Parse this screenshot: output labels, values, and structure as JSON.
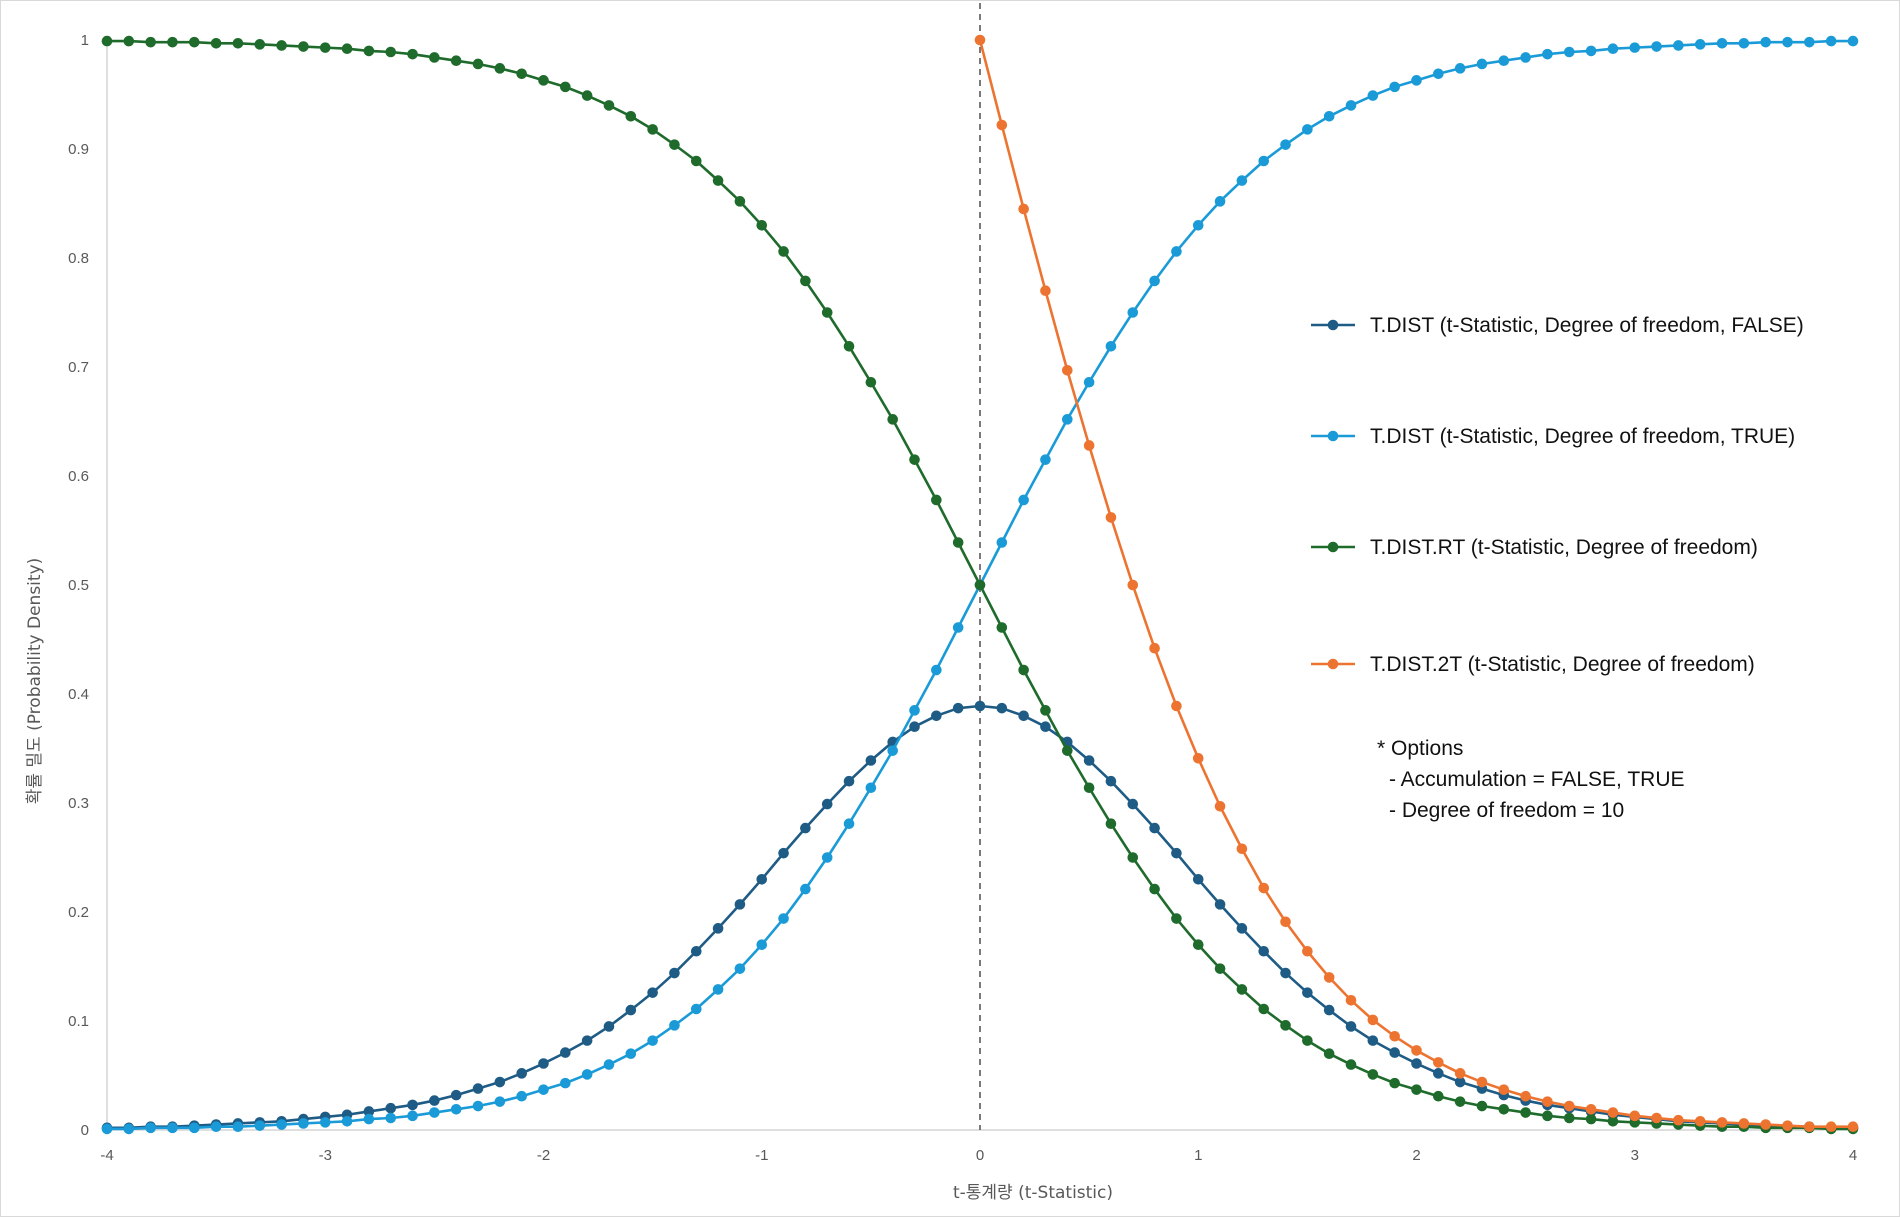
{
  "chart_data": {
    "type": "line",
    "xlabel": "t-통계량 (t-Statistic)",
    "ylabel": "확률 밀도 (Probability Density)",
    "xlim": [
      -4,
      4
    ],
    "ylim": [
      0,
      1
    ],
    "x_ticks": [
      "-4",
      "-3",
      "-2",
      "-1",
      "0",
      "1",
      "2",
      "3",
      "4"
    ],
    "y_ticks": [
      "0",
      "0.1",
      "0.2",
      "0.3",
      "0.4",
      "0.5",
      "0.6",
      "0.7",
      "0.8",
      "0.9",
      "1"
    ],
    "x_step": 0.1,
    "reference_line": {
      "x": 0,
      "style": "dashed",
      "color": "#595959"
    },
    "grid": false,
    "legend_position": "right",
    "series": [
      {
        "name": "T.DIST (t-Statistic, Degree of freedom, FALSE)",
        "color": "#1F5C85",
        "x_start": -4,
        "values": [
          0.002,
          0.002,
          0.003,
          0.003,
          0.004,
          0.005,
          0.006,
          0.007,
          0.008,
          0.01,
          0.012,
          0.014,
          0.017,
          0.02,
          0.023,
          0.027,
          0.032,
          0.038,
          0.044,
          0.052,
          0.061,
          0.071,
          0.082,
          0.095,
          0.11,
          0.126,
          0.144,
          0.164,
          0.185,
          0.207,
          0.23,
          0.254,
          0.277,
          0.299,
          0.32,
          0.339,
          0.356,
          0.37,
          0.38,
          0.387,
          0.389,
          0.387,
          0.38,
          0.37,
          0.356,
          0.339,
          0.32,
          0.299,
          0.277,
          0.254,
          0.23,
          0.207,
          0.185,
          0.164,
          0.144,
          0.126,
          0.11,
          0.095,
          0.082,
          0.071,
          0.061,
          0.052,
          0.044,
          0.038,
          0.032,
          0.027,
          0.023,
          0.02,
          0.017,
          0.014,
          0.012,
          0.01,
          0.008,
          0.007,
          0.006,
          0.005,
          0.004,
          0.003,
          0.003,
          0.002,
          0.002
        ]
      },
      {
        "name": "T.DIST (t-Statistic, Degree of freedom, TRUE)",
        "color": "#1A9BD7",
        "x_start": -4,
        "values": [
          0.001,
          0.001,
          0.002,
          0.002,
          0.002,
          0.003,
          0.003,
          0.004,
          0.005,
          0.006,
          0.007,
          0.008,
          0.01,
          0.011,
          0.013,
          0.016,
          0.019,
          0.022,
          0.026,
          0.031,
          0.037,
          0.043,
          0.051,
          0.06,
          0.07,
          0.082,
          0.096,
          0.111,
          0.129,
          0.148,
          0.17,
          0.194,
          0.221,
          0.25,
          0.281,
          0.314,
          0.348,
          0.385,
          0.422,
          0.461,
          0.5,
          0.539,
          0.578,
          0.615,
          0.652,
          0.686,
          0.719,
          0.75,
          0.779,
          0.806,
          0.83,
          0.852,
          0.871,
          0.889,
          0.904,
          0.918,
          0.93,
          0.94,
          0.949,
          0.957,
          0.963,
          0.969,
          0.974,
          0.978,
          0.981,
          0.984,
          0.987,
          0.989,
          0.99,
          0.992,
          0.993,
          0.994,
          0.995,
          0.996,
          0.997,
          0.997,
          0.998,
          0.998,
          0.998,
          0.999,
          0.999
        ]
      },
      {
        "name": "T.DIST.RT (t-Statistic, Degree of freedom)",
        "color": "#1E6B2C",
        "x_start": -4,
        "values": [
          0.999,
          0.999,
          0.998,
          0.998,
          0.998,
          0.997,
          0.997,
          0.996,
          0.995,
          0.994,
          0.993,
          0.992,
          0.99,
          0.989,
          0.987,
          0.984,
          0.981,
          0.978,
          0.974,
          0.969,
          0.963,
          0.957,
          0.949,
          0.94,
          0.93,
          0.918,
          0.904,
          0.889,
          0.871,
          0.852,
          0.83,
          0.806,
          0.779,
          0.75,
          0.719,
          0.686,
          0.652,
          0.615,
          0.578,
          0.539,
          0.5,
          0.461,
          0.422,
          0.385,
          0.348,
          0.314,
          0.281,
          0.25,
          0.221,
          0.194,
          0.17,
          0.148,
          0.129,
          0.111,
          0.096,
          0.082,
          0.07,
          0.06,
          0.051,
          0.043,
          0.037,
          0.031,
          0.026,
          0.022,
          0.019,
          0.016,
          0.013,
          0.011,
          0.01,
          0.008,
          0.007,
          0.006,
          0.005,
          0.004,
          0.003,
          0.003,
          0.002,
          0.002,
          0.002,
          0.001,
          0.001
        ]
      },
      {
        "name": "T.DIST.2T (t-Statistic, Degree of freedom)",
        "color": "#ED7430",
        "x_start": 0,
        "values": [
          1.0,
          0.922,
          0.845,
          0.77,
          0.697,
          0.628,
          0.562,
          0.5,
          0.442,
          0.389,
          0.341,
          0.297,
          0.258,
          0.222,
          0.191,
          0.164,
          0.14,
          0.119,
          0.101,
          0.086,
          0.073,
          0.062,
          0.052,
          0.044,
          0.037,
          0.031,
          0.026,
          0.022,
          0.019,
          0.016,
          0.013,
          0.011,
          0.009,
          0.008,
          0.007,
          0.006,
          0.005,
          0.004,
          0.003,
          0.003,
          0.003
        ]
      }
    ],
    "annotation": {
      "lines": [
        "* Options",
        "- Accumulation = FALSE, TRUE",
        "- Degree of freedom = 10"
      ]
    }
  }
}
